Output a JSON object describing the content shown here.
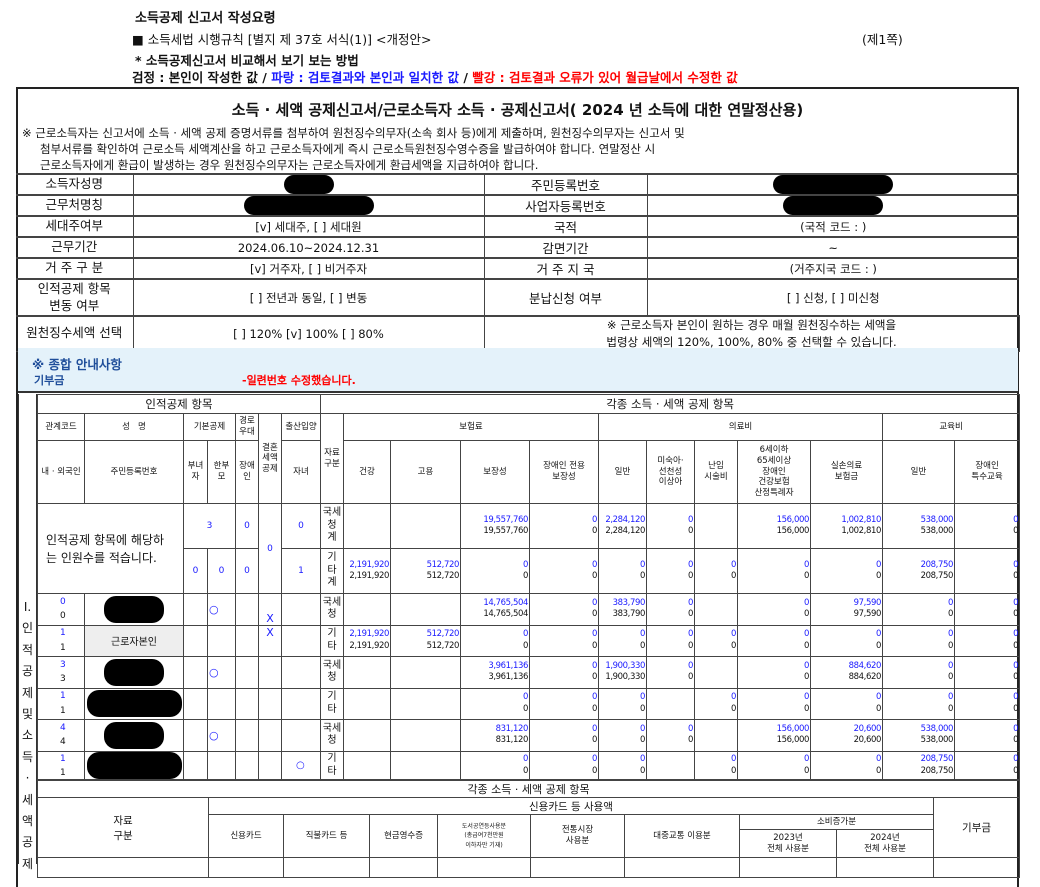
{
  "header": {
    "title": "소득공제 신고서 작성요령",
    "form_ref": "■ 소득세법 시행규칙 [별지 제 37호 서식(1)] <개정안>",
    "page": "(제1쪽)",
    "subtitle": "* 소득공제신고서 비교해서 보기 보는 방법",
    "legend": {
      "black": "검정 : 본인이 작성한 값",
      "sep1": " / ",
      "blue": "파랑 : 검토결과와 본인과 일치한 값",
      "sep2": " / ",
      "red": "빨강 : 검토결과 오류가 있어 월급날에서 수정한 값"
    }
  },
  "colors": {
    "reviewed_match": "#1a1aff",
    "corrected": "#ff0000",
    "guide_bg": "#e4f2fa",
    "guide_title": "#1f4e9a"
  },
  "form": {
    "title": "소득 · 세액 공제신고서/근로소득자 소득 · 공제신고서( 2024 년 소득에 대한 연말정산용)",
    "notes": [
      "※ 근로소득자는 신고서에 소득 · 세액 공제 증명서류를 첨부하여 원천징수의무자(소속 회사 등)에게 제출하며, 원천징수의무자는 신고서 및",
      "첨부서류를 확인하여 근로소득 세액계산을 하고 근로소득자에게 즉시 근로소득원천징수영수증을 발급하여야 합니다. 연말정산 시",
      "근로소득자에게 환급이 발생하는 경우 원천징수의무자는 근로소득자에게 환급세액을 지급하여야 합니다."
    ],
    "info": [
      {
        "label": "소득자성명",
        "value": "",
        "redacted": true,
        "label2": "주민등록번호",
        "value2": "",
        "redacted2": true
      },
      {
        "label": "근무처명칭",
        "value": "",
        "redacted": true,
        "label2": "사업자등록번호",
        "value2": "",
        "redacted2": true
      },
      {
        "label": "세대주여부",
        "value": "[v] 세대주, [ ] 세대원",
        "label2": "국적",
        "value2": "(국적 코드 : )"
      },
      {
        "label": "근무기간",
        "value": "2024.06.10~2024.12.31",
        "label2": "감면기간",
        "value2": "~"
      },
      {
        "label": "거 주 구 분",
        "value": "[v] 거주자, [ ] 비거주자",
        "label2": "거 주 지 국",
        "value2": "(거주지국 코드 : )"
      },
      {
        "label": "인적공제 항목\n변동 여부",
        "value": "[ ] 전년과 동일, [ ] 변동",
        "label2": "분납신청 여부",
        "value2": "[ ] 신청, [ ] 미신청"
      },
      {
        "label": "원천징수세액 선택",
        "value": "[  ] 120% [v] 100% [  ] 80%",
        "note": "※ 근로소득자 본인이 원하는 경우 매월 원천징수하는 세액을\n법령상 세액의 120%, 100%, 80% 중 선택할 수 있습니다."
      }
    ]
  },
  "guide": {
    "title": "※ 종합 안내사항",
    "item_label": "기부금",
    "item_message": "-일련번호 수정했습니다."
  },
  "side_label": [
    "I.",
    "인",
    "적",
    "공",
    "제",
    " ",
    "및",
    " ",
    "소",
    "득",
    "·",
    "세",
    "액",
    "공",
    "제"
  ],
  "deduction": {
    "personal_title": "인적공제 항목",
    "other_title": "각종 소득 · 세액 공제 항목",
    "h": {
      "relation": "관계코드",
      "name": "성   명",
      "basic": "기본공제",
      "elder": "경로\n우대",
      "marriage": "결혼\n세액\n공제",
      "birth": "출산입양",
      "nation": "내 · 외국인",
      "rrn": "주민등록번호",
      "woman": "부녀\n자",
      "single": "한부\n모",
      "disabled": "장애\n인",
      "child": "자녀",
      "source": "자료\n구분",
      "insurance": "보험료",
      "medical": "의료비",
      "education": "교육비"
    },
    "cols": [
      "건강",
      "고용",
      "보장성",
      "장애인 전용\n보장성",
      "일반",
      "미숙아·\n선천성\n이상아",
      "난임\n시술비",
      "6세이하\n65세이상\n장애인\n건강보험\n산정특례자",
      "실손의료\n보험금",
      "일반",
      "장애인\n특수교육"
    ],
    "summary_text": "인적공제 항목에 해당하\n는 인원수를 적습니다.",
    "summary": [
      {
        "source": "국세\n청\n계",
        "basic": "3",
        "elder": "0",
        "marriage": "0",
        "birth": "0",
        "blue": [
          "",
          "",
          "19,557,760",
          "0",
          "2,284,120",
          "0",
          "",
          "156,000",
          "1,002,810",
          "538,000",
          "0"
        ],
        "black": [
          "",
          "",
          "19,557,760",
          "0",
          "2,284,120",
          "0",
          "",
          "156,000",
          "1,002,810",
          "538,000",
          "0"
        ]
      },
      {
        "source": "기\n타\n계",
        "woman": "0",
        "single": "0",
        "disabled": "0",
        "birth": "1",
        "blue": [
          "2,191,920",
          "512,720",
          "0",
          "0",
          "0",
          "0",
          "0",
          "0",
          "0",
          "208,750",
          "0"
        ],
        "black": [
          "2,191,920",
          "512,720",
          "0",
          "0",
          "0",
          "0",
          "0",
          "0",
          "0",
          "208,750",
          "0"
        ]
      }
    ],
    "persons": [
      {
        "code": [
          "0",
          "0"
        ],
        "name": "",
        "redacted": true,
        "flags": [
          "",
          "○",
          "",
          ""
        ],
        "marriage": "X",
        "source": "국세\n청",
        "blue": [
          "",
          "",
          "14,765,504",
          "0",
          "383,790",
          "0",
          "",
          "0",
          "97,590",
          "0",
          "0"
        ],
        "black": [
          "",
          "",
          "14,765,504",
          "0",
          "383,790",
          "0",
          "",
          "0",
          "97,590",
          "0",
          "0"
        ]
      },
      {
        "code": [
          "1",
          "1"
        ],
        "name": "근로자본인",
        "redacted": false,
        "flags": [
          "",
          "",
          "",
          ""
        ],
        "marriage": "X",
        "source": "기\n타",
        "blue": [
          "2,191,920",
          "512,720",
          "0",
          "0",
          "0",
          "0",
          "0",
          "0",
          "0",
          "0",
          "0"
        ],
        "black": [
          "2,191,920",
          "512,720",
          "0",
          "0",
          "0",
          "0",
          "0",
          "0",
          "0",
          "0",
          "0"
        ]
      },
      {
        "code": [
          "3",
          "3"
        ],
        "name": "",
        "redacted": true,
        "flags": [
          "",
          "○",
          "",
          ""
        ],
        "marriage": "",
        "source": "국세\n청",
        "blue": [
          "",
          "",
          "3,961,136",
          "0",
          "1,900,330",
          "0",
          "",
          "0",
          "884,620",
          "0",
          "0"
        ],
        "black": [
          "",
          "",
          "3,961,136",
          "0",
          "1,900,330",
          "0",
          "",
          "0",
          "884,620",
          "0",
          "0"
        ]
      },
      {
        "code": [
          "1",
          "1"
        ],
        "name": "",
        "redacted": true,
        "flags": [
          "",
          "",
          "",
          ""
        ],
        "marriage": "",
        "source": "기\n타",
        "blue": [
          "",
          "",
          "0",
          "0",
          "0",
          "",
          "0",
          "0",
          "0",
          "0",
          "0"
        ],
        "black": [
          "",
          "",
          "0",
          "0",
          "0",
          "",
          "0",
          "0",
          "0",
          "0",
          "0"
        ]
      },
      {
        "code": [
          "4",
          "4"
        ],
        "name": "",
        "redacted": true,
        "flags": [
          "",
          "○",
          "",
          ""
        ],
        "marriage": "",
        "source": "국세\n청",
        "blue": [
          "",
          "",
          "831,120",
          "0",
          "0",
          "0",
          "",
          "156,000",
          "20,600",
          "538,000",
          "0"
        ],
        "black": [
          "",
          "",
          "831,120",
          "0",
          "0",
          "0",
          "",
          "156,000",
          "20,600",
          "538,000",
          "0"
        ]
      },
      {
        "code": [
          "1",
          "1"
        ],
        "name": "",
        "redacted": true,
        "flags": [
          "",
          "",
          "",
          "○"
        ],
        "marriage": "",
        "source": "기\n타",
        "blue": [
          "",
          "",
          "0",
          "0",
          "0",
          "",
          "0",
          "0",
          "0",
          "208,750",
          "0"
        ],
        "black": [
          "",
          "",
          "0",
          "0",
          "0",
          "",
          "0",
          "0",
          "0",
          "208,750",
          "0"
        ]
      }
    ]
  },
  "cards": {
    "title": "각종 소득 · 세액 공제 항목",
    "source": "자료\n구분",
    "group": "신용카드 등 사용액",
    "cols": [
      "신용카드",
      "직불카드 등",
      "현금영수증",
      "도서공연등사용분\n(총급여7천만원\n이하자만 기재)",
      "전통시장\n사용분",
      "대중교통 이용분"
    ],
    "increase": "소비증가분",
    "y2023": "2023년\n전체 사용분",
    "y2024": "2024년\n전체 사용분",
    "donation": "기부금"
  }
}
